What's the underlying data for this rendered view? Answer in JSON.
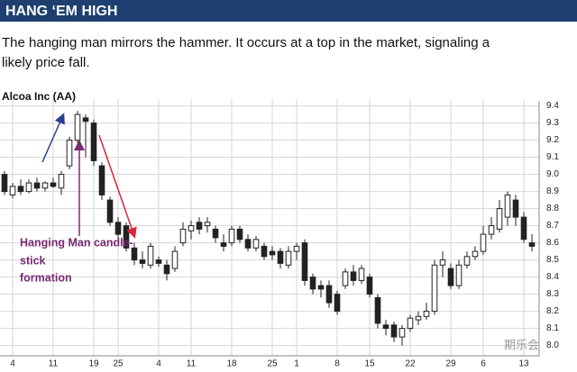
{
  "header": {
    "title": "HANG ‘EM HIGH"
  },
  "description": {
    "lines": [
      "The hanging man mirrors the hammer. It occurs at a top in the market, signaling a",
      "likely price fall."
    ]
  },
  "watermark": "期乐会",
  "chart_data": {
    "type": "candlestick",
    "title": "Alcoa Inc (AA)",
    "annotation": {
      "lines": [
        "Hanging Man candle-",
        "stick",
        "formation"
      ],
      "color": "#7a2a72"
    },
    "categories": [
      null,
      "4",
      null,
      null,
      null,
      null,
      "11",
      null,
      null,
      null,
      null,
      "19",
      null,
      null,
      "25",
      null,
      null,
      null,
      null,
      "4",
      null,
      null,
      null,
      "11",
      null,
      null,
      null,
      null,
      "18",
      null,
      null,
      null,
      null,
      "25",
      null,
      null,
      "1",
      null,
      null,
      null,
      null,
      "8",
      null,
      null,
      null,
      "15",
      null,
      null,
      null,
      null,
      "22",
      null,
      null,
      null,
      null,
      "29",
      null,
      null,
      null,
      "6",
      null,
      null,
      null,
      null,
      "13",
      null
    ],
    "open": [
      9.0,
      8.88,
      8.93,
      8.9,
      8.95,
      8.92,
      8.95,
      8.92,
      9.05,
      9.2,
      9.33,
      9.3,
      9.05,
      8.85,
      8.72,
      8.7,
      8.57,
      8.5,
      8.47,
      8.5,
      8.47,
      8.45,
      8.6,
      8.67,
      8.72,
      8.7,
      8.68,
      8.6,
      8.6,
      8.68,
      8.62,
      8.57,
      8.58,
      8.55,
      8.55,
      8.47,
      8.55,
      8.6,
      8.4,
      8.35,
      8.35,
      8.3,
      8.35,
      8.43,
      8.38,
      8.4,
      8.28,
      8.12,
      8.12,
      8.05,
      8.1,
      8.15,
      8.17,
      8.2,
      8.47,
      8.45,
      8.35,
      8.47,
      8.52,
      8.55,
      8.65,
      8.68,
      8.75,
      8.85,
      8.75,
      8.6
    ],
    "high": [
      9.02,
      8.95,
      8.97,
      8.97,
      8.98,
      8.96,
      8.98,
      9.02,
      9.22,
      9.37,
      9.35,
      9.32,
      9.07,
      8.87,
      8.75,
      8.72,
      8.6,
      8.55,
      8.6,
      8.52,
      8.5,
      8.58,
      8.72,
      8.73,
      8.75,
      8.75,
      8.7,
      8.65,
      8.7,
      8.7,
      8.65,
      8.64,
      8.6,
      8.58,
      8.57,
      8.58,
      8.6,
      8.62,
      8.42,
      8.38,
      8.38,
      8.32,
      8.45,
      8.47,
      8.47,
      8.42,
      8.3,
      8.15,
      8.14,
      8.12,
      8.18,
      8.2,
      8.25,
      8.5,
      8.55,
      8.48,
      8.5,
      8.55,
      8.58,
      8.7,
      8.75,
      8.85,
      8.9,
      8.88,
      8.78,
      8.65
    ],
    "low": [
      8.88,
      8.86,
      8.88,
      8.89,
      8.9,
      8.9,
      8.92,
      8.88,
      9.03,
      9.18,
      9.1,
      9.05,
      8.85,
      8.7,
      8.62,
      8.55,
      8.47,
      8.45,
      8.45,
      8.46,
      8.38,
      8.43,
      8.58,
      8.62,
      8.65,
      8.66,
      8.6,
      8.55,
      8.58,
      8.6,
      8.55,
      8.55,
      8.5,
      8.5,
      8.45,
      8.45,
      8.5,
      8.35,
      8.3,
      8.28,
      8.22,
      8.18,
      8.33,
      8.35,
      8.36,
      8.28,
      8.1,
      8.06,
      8.02,
      8.0,
      8.08,
      8.12,
      8.15,
      8.18,
      8.4,
      8.33,
      8.33,
      8.45,
      8.5,
      8.53,
      8.62,
      8.66,
      8.7,
      8.7,
      8.6,
      8.55
    ],
    "close": [
      8.9,
      8.93,
      8.9,
      8.95,
      8.92,
      8.95,
      8.93,
      9.0,
      9.2,
      9.35,
      9.31,
      9.08,
      8.88,
      8.72,
      8.65,
      8.57,
      8.5,
      8.48,
      8.58,
      8.48,
      8.42,
      8.55,
      8.68,
      8.7,
      8.68,
      8.72,
      8.63,
      8.58,
      8.68,
      8.62,
      8.57,
      8.62,
      8.52,
      8.53,
      8.48,
      8.55,
      8.58,
      8.38,
      8.33,
      8.33,
      8.25,
      8.2,
      8.43,
      8.38,
      8.45,
      8.3,
      8.13,
      8.1,
      8.05,
      8.1,
      8.16,
      8.17,
      8.2,
      8.47,
      8.5,
      8.35,
      8.47,
      8.52,
      8.55,
      8.65,
      8.7,
      8.8,
      8.88,
      8.75,
      8.62,
      8.58
    ],
    "up_color": "#ffffff",
    "down_color": "#222222",
    "ylim": [
      7.94,
      9.44
    ],
    "yticks": [
      {
        "value": 8,
        "label": "8.0"
      },
      8.1,
      8.2,
      8.3,
      8.4,
      8.5,
      8.6,
      8.7,
      8.8,
      8.9,
      {
        "value": 9,
        "label": "9.0"
      },
      9.1,
      9.2,
      9.3,
      9.4
    ],
    "grid": true
  }
}
